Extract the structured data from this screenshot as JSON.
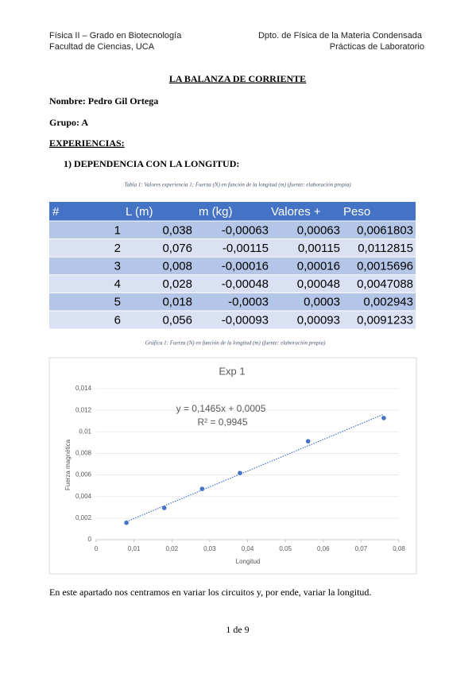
{
  "header": {
    "left": [
      "Física II – Grado en Biotecnología",
      "Facultad de Ciencias, UCA"
    ],
    "right": [
      "Dpto. de Física de la Materia Condensada",
      "Prácticas de Laboratorio"
    ]
  },
  "title": "LA BALANZA DE CORRIENTE",
  "name": "Nombre: Pedro Gil Ortega",
  "group": "Grupo: A",
  "section": "EXPERIENCIAS:",
  "subsection": "1)  DEPENDENCIA CON LA LONGITUD:",
  "table_caption": "Tabla 1: Valores experiencia 1; Fuerza (N) en función de la longitud (m) (fuente: elaboración propia)",
  "table": {
    "header": [
      "#",
      "L (m)",
      "m (kg)",
      "Valores +",
      "Peso"
    ],
    "rows": [
      [
        "1",
        "0,038",
        "-0,00063",
        "0,00063",
        "0,0061803"
      ],
      [
        "2",
        "0,076",
        "-0,00115",
        "0,00115",
        "0,0112815"
      ],
      [
        "3",
        "0,008",
        "-0,00016",
        "0,00016",
        "0,0015696"
      ],
      [
        "4",
        "0,028",
        "-0,00048",
        "0,00048",
        "0,0047088"
      ],
      [
        "5",
        "0,018",
        "-0,0003",
        "0,0003",
        "0,002943"
      ],
      [
        "6",
        "0,056",
        "-0,00093",
        "0,00093",
        "0,0091233"
      ]
    ]
  },
  "figure_caption": "Gráfica 1: Fuerza (N) en función de la longitud (m) (fuente: elaboración propia)",
  "chart_data": {
    "type": "scatter",
    "title": "Exp 1",
    "x_label": "Longitud",
    "y_label": "Fuerza magnética",
    "color": "#4472c4",
    "x": [
      0.038,
      0.076,
      0.008,
      0.028,
      0.018,
      0.056
    ],
    "values": [
      0.0061803,
      0.0112815,
      0.0015696,
      0.0047088,
      0.002943,
      0.0091233
    ],
    "xlim": [
      0,
      0.08
    ],
    "xticks": [
      0,
      {
        "value": 0.01,
        "label": "0,01"
      },
      {
        "value": 0.02,
        "label": "0,02"
      },
      {
        "value": 0.03,
        "label": "0,03"
      },
      {
        "value": 0.04,
        "label": "0,04"
      },
      {
        "value": 0.05,
        "label": "0,05"
      },
      {
        "value": 0.06,
        "label": "0,06"
      },
      {
        "value": 0.07,
        "label": "0,07"
      },
      {
        "value": 0.08,
        "label": "0,08"
      }
    ],
    "ylim": [
      0,
      0.014
    ],
    "yticks": [
      0,
      {
        "value": 0.002,
        "label": "0,002"
      },
      {
        "value": 0.004,
        "label": "0,004"
      },
      {
        "value": 0.006,
        "label": "0,006"
      },
      {
        "value": 0.008,
        "label": "0,008"
      },
      {
        "value": 0.01,
        "label": "0,01"
      },
      {
        "value": 0.012,
        "label": "0,012"
      },
      {
        "value": 0.014,
        "label": "0,014"
      }
    ],
    "equation": "y = 0,1465x + 0,0005",
    "r_squared": "R² = 0,9945"
  },
  "paragraph": "En este apartado nos centramos en variar los circuitos y, por ende, variar la longitud.",
  "footer": "1 de 9"
}
